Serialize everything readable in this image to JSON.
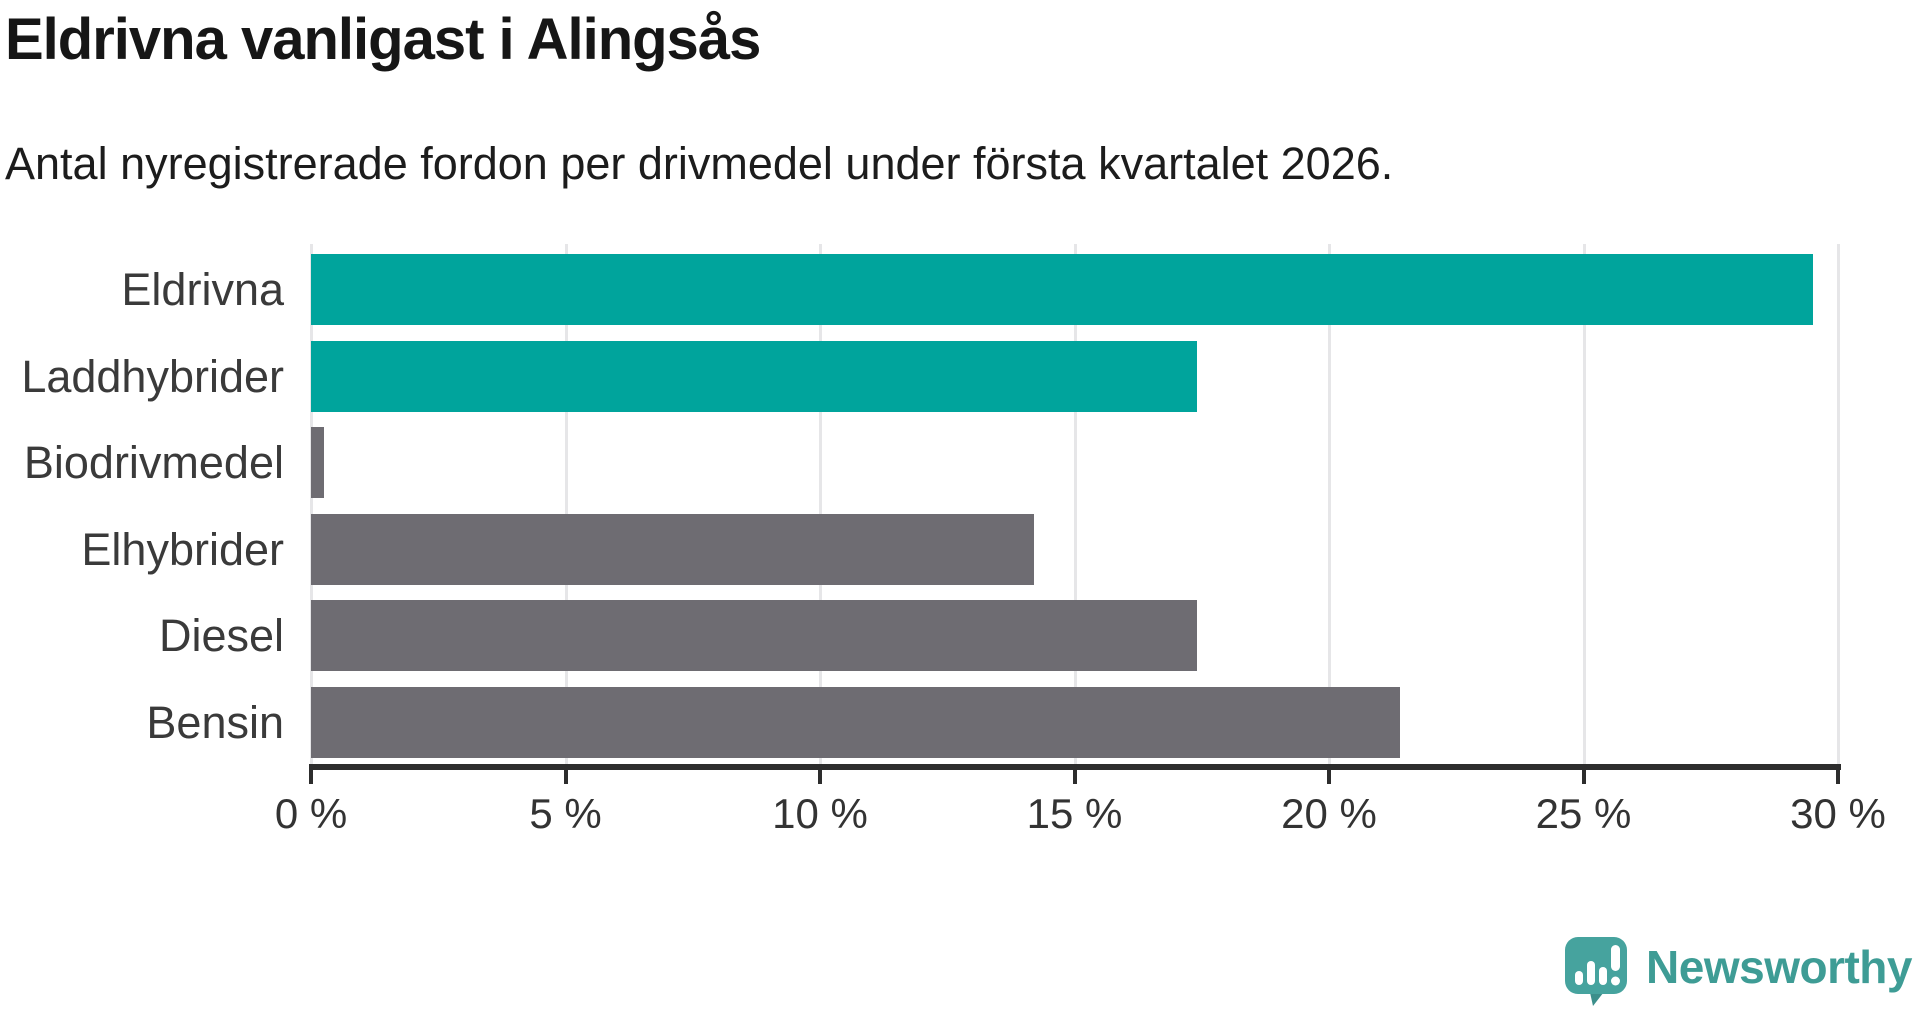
{
  "header": {
    "title": "Eldrivna vanligast i Alingsås",
    "subtitle": "Antal nyregistrerade fordon per drivmedel under första kvartalet 2026."
  },
  "chart_data": {
    "type": "bar",
    "orientation": "horizontal",
    "title": "Eldrivna vanligast i Alingsås",
    "subtitle": "Antal nyregistrerade fordon per drivmedel under första kvartalet 2026.",
    "categories": [
      "Eldrivna",
      "Laddhybrider",
      "Biodrivmedel",
      "Elhybrider",
      "Diesel",
      "Bensin"
    ],
    "values": [
      29.5,
      17.4,
      0.25,
      14.2,
      17.4,
      21.4
    ],
    "unit": "%",
    "bar_colors": [
      "#00a49c",
      "#00a49c",
      "#6e6c72",
      "#6e6c72",
      "#6e6c72",
      "#6e6c72"
    ],
    "xlabel": "",
    "ylabel": "",
    "xlim": [
      0,
      30
    ],
    "x_ticks": [
      0,
      5,
      10,
      15,
      20,
      25,
      30
    ],
    "x_tick_labels": [
      "0 %",
      "5 %",
      "10 %",
      "15 %",
      "20 %",
      "25 %",
      "30 %"
    ],
    "grid": true,
    "legend": false
  },
  "colors": {
    "accent_teal": "#00a49c",
    "neutral_gray": "#6e6c72",
    "axis": "#2d2d2d",
    "gridline": "#e6e6e8",
    "logo_teal": "#46a39e",
    "logo_tail": "#3c8f8b",
    "logo_text_color": "#3e9c95"
  },
  "branding": {
    "logo_text": "Newsworthy"
  }
}
